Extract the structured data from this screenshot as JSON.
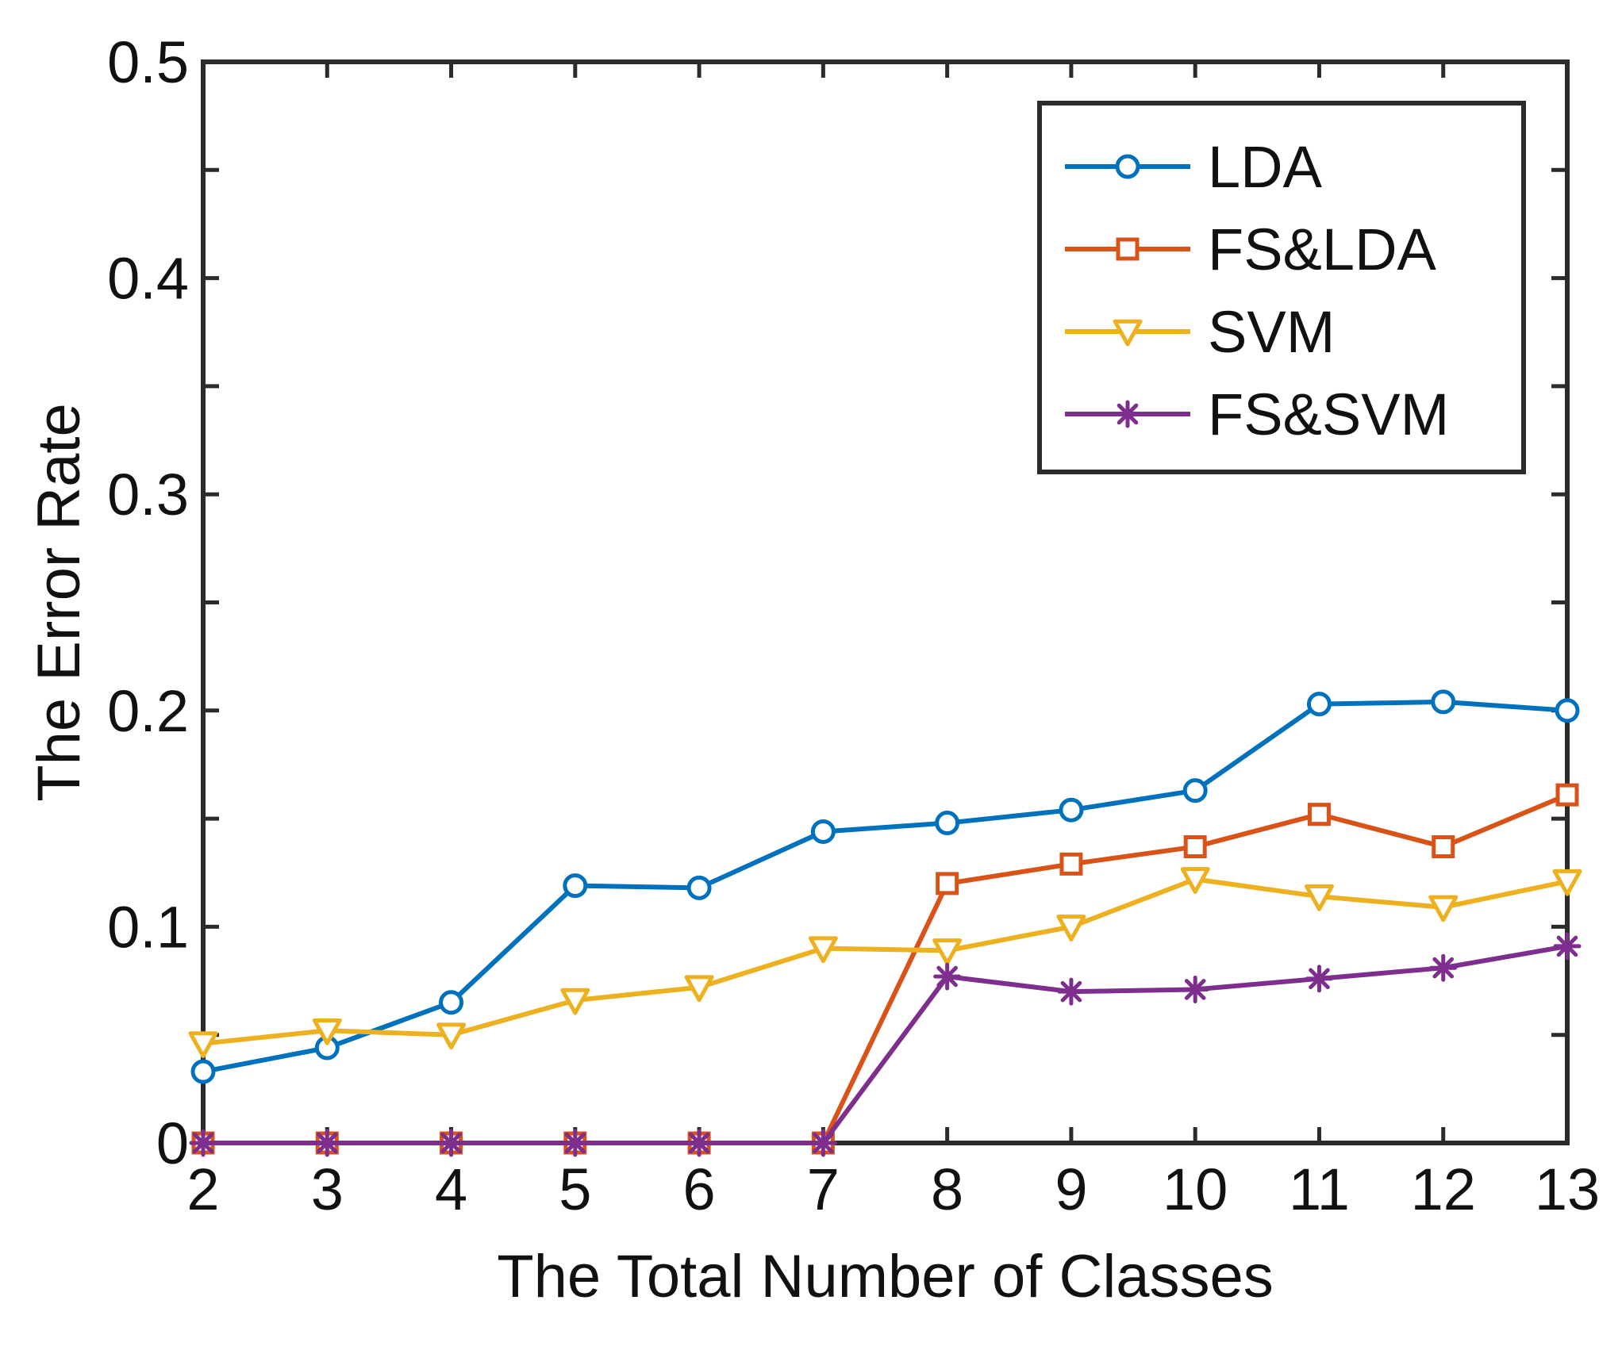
{
  "chart_data": {
    "type": "line",
    "title": "",
    "xlabel": "The Total Number of Classes",
    "ylabel": "The Error Rate",
    "xlim": [
      2,
      13
    ],
    "ylim": [
      0,
      0.5
    ],
    "x": [
      2,
      3,
      4,
      5,
      6,
      7,
      8,
      9,
      10,
      11,
      12,
      13
    ],
    "x_ticks": [
      2,
      3,
      4,
      5,
      6,
      7,
      8,
      9,
      10,
      11,
      12,
      13
    ],
    "y_ticks": [
      0,
      0.1,
      0.2,
      0.3,
      0.4,
      0.5
    ],
    "y_tick_labels": [
      "0",
      "0.1",
      "0.2",
      "0.3",
      "0.4",
      "0.5"
    ],
    "grid": false,
    "legend_position": "top-right",
    "series": [
      {
        "name": "LDA",
        "color": "#0072bd",
        "marker": "circle",
        "values": [
          0.033,
          0.044,
          0.065,
          0.119,
          0.118,
          0.144,
          0.148,
          0.154,
          0.163,
          0.203,
          0.204,
          0.2
        ]
      },
      {
        "name": "FS&LDA",
        "color": "#d95319",
        "marker": "square",
        "values": [
          0,
          0,
          0,
          0,
          0,
          0,
          0.12,
          0.129,
          0.137,
          0.152,
          0.137,
          0.161
        ]
      },
      {
        "name": "SVM",
        "color": "#edb120",
        "marker": "triangle-down",
        "values": [
          0.046,
          0.052,
          0.05,
          0.066,
          0.072,
          0.09,
          0.089,
          0.1,
          0.122,
          0.114,
          0.109,
          0.121
        ]
      },
      {
        "name": "FS&SVM",
        "color": "#7e2f8e",
        "marker": "asterisk",
        "values": [
          0,
          0,
          0,
          0,
          0,
          0,
          0.077,
          0.07,
          0.071,
          0.076,
          0.081,
          0.091
        ]
      }
    ]
  }
}
